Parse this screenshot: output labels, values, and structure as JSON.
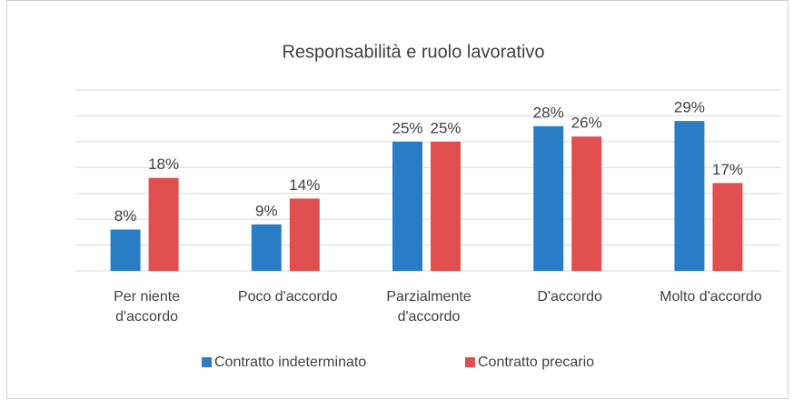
{
  "chart_data": {
    "type": "bar",
    "title": "Responsabilità e ruolo lavorativo",
    "categories": [
      "Per niente d'accordo",
      "Poco d'accordo",
      "Parzialmente d'accordo",
      "D'accordo",
      "Molto d'accordo"
    ],
    "series": [
      {
        "name": "Contratto indeterminato",
        "color": "#2a7dc4",
        "values": [
          8,
          9,
          25,
          28,
          29
        ],
        "value_labels": [
          "8%",
          "9%",
          "25%",
          "28%",
          "29%"
        ]
      },
      {
        "name": "Contratto precario",
        "color": "#e04f4f",
        "values": [
          18,
          14,
          25,
          26,
          17
        ],
        "value_labels": [
          "18%",
          "14%",
          "25%",
          "26%",
          "17%"
        ]
      }
    ],
    "ylim": [
      0,
      35
    ],
    "yticks": [
      0,
      5,
      10,
      15,
      20,
      25,
      30,
      35
    ],
    "grid": true,
    "legend": "bottom"
  }
}
